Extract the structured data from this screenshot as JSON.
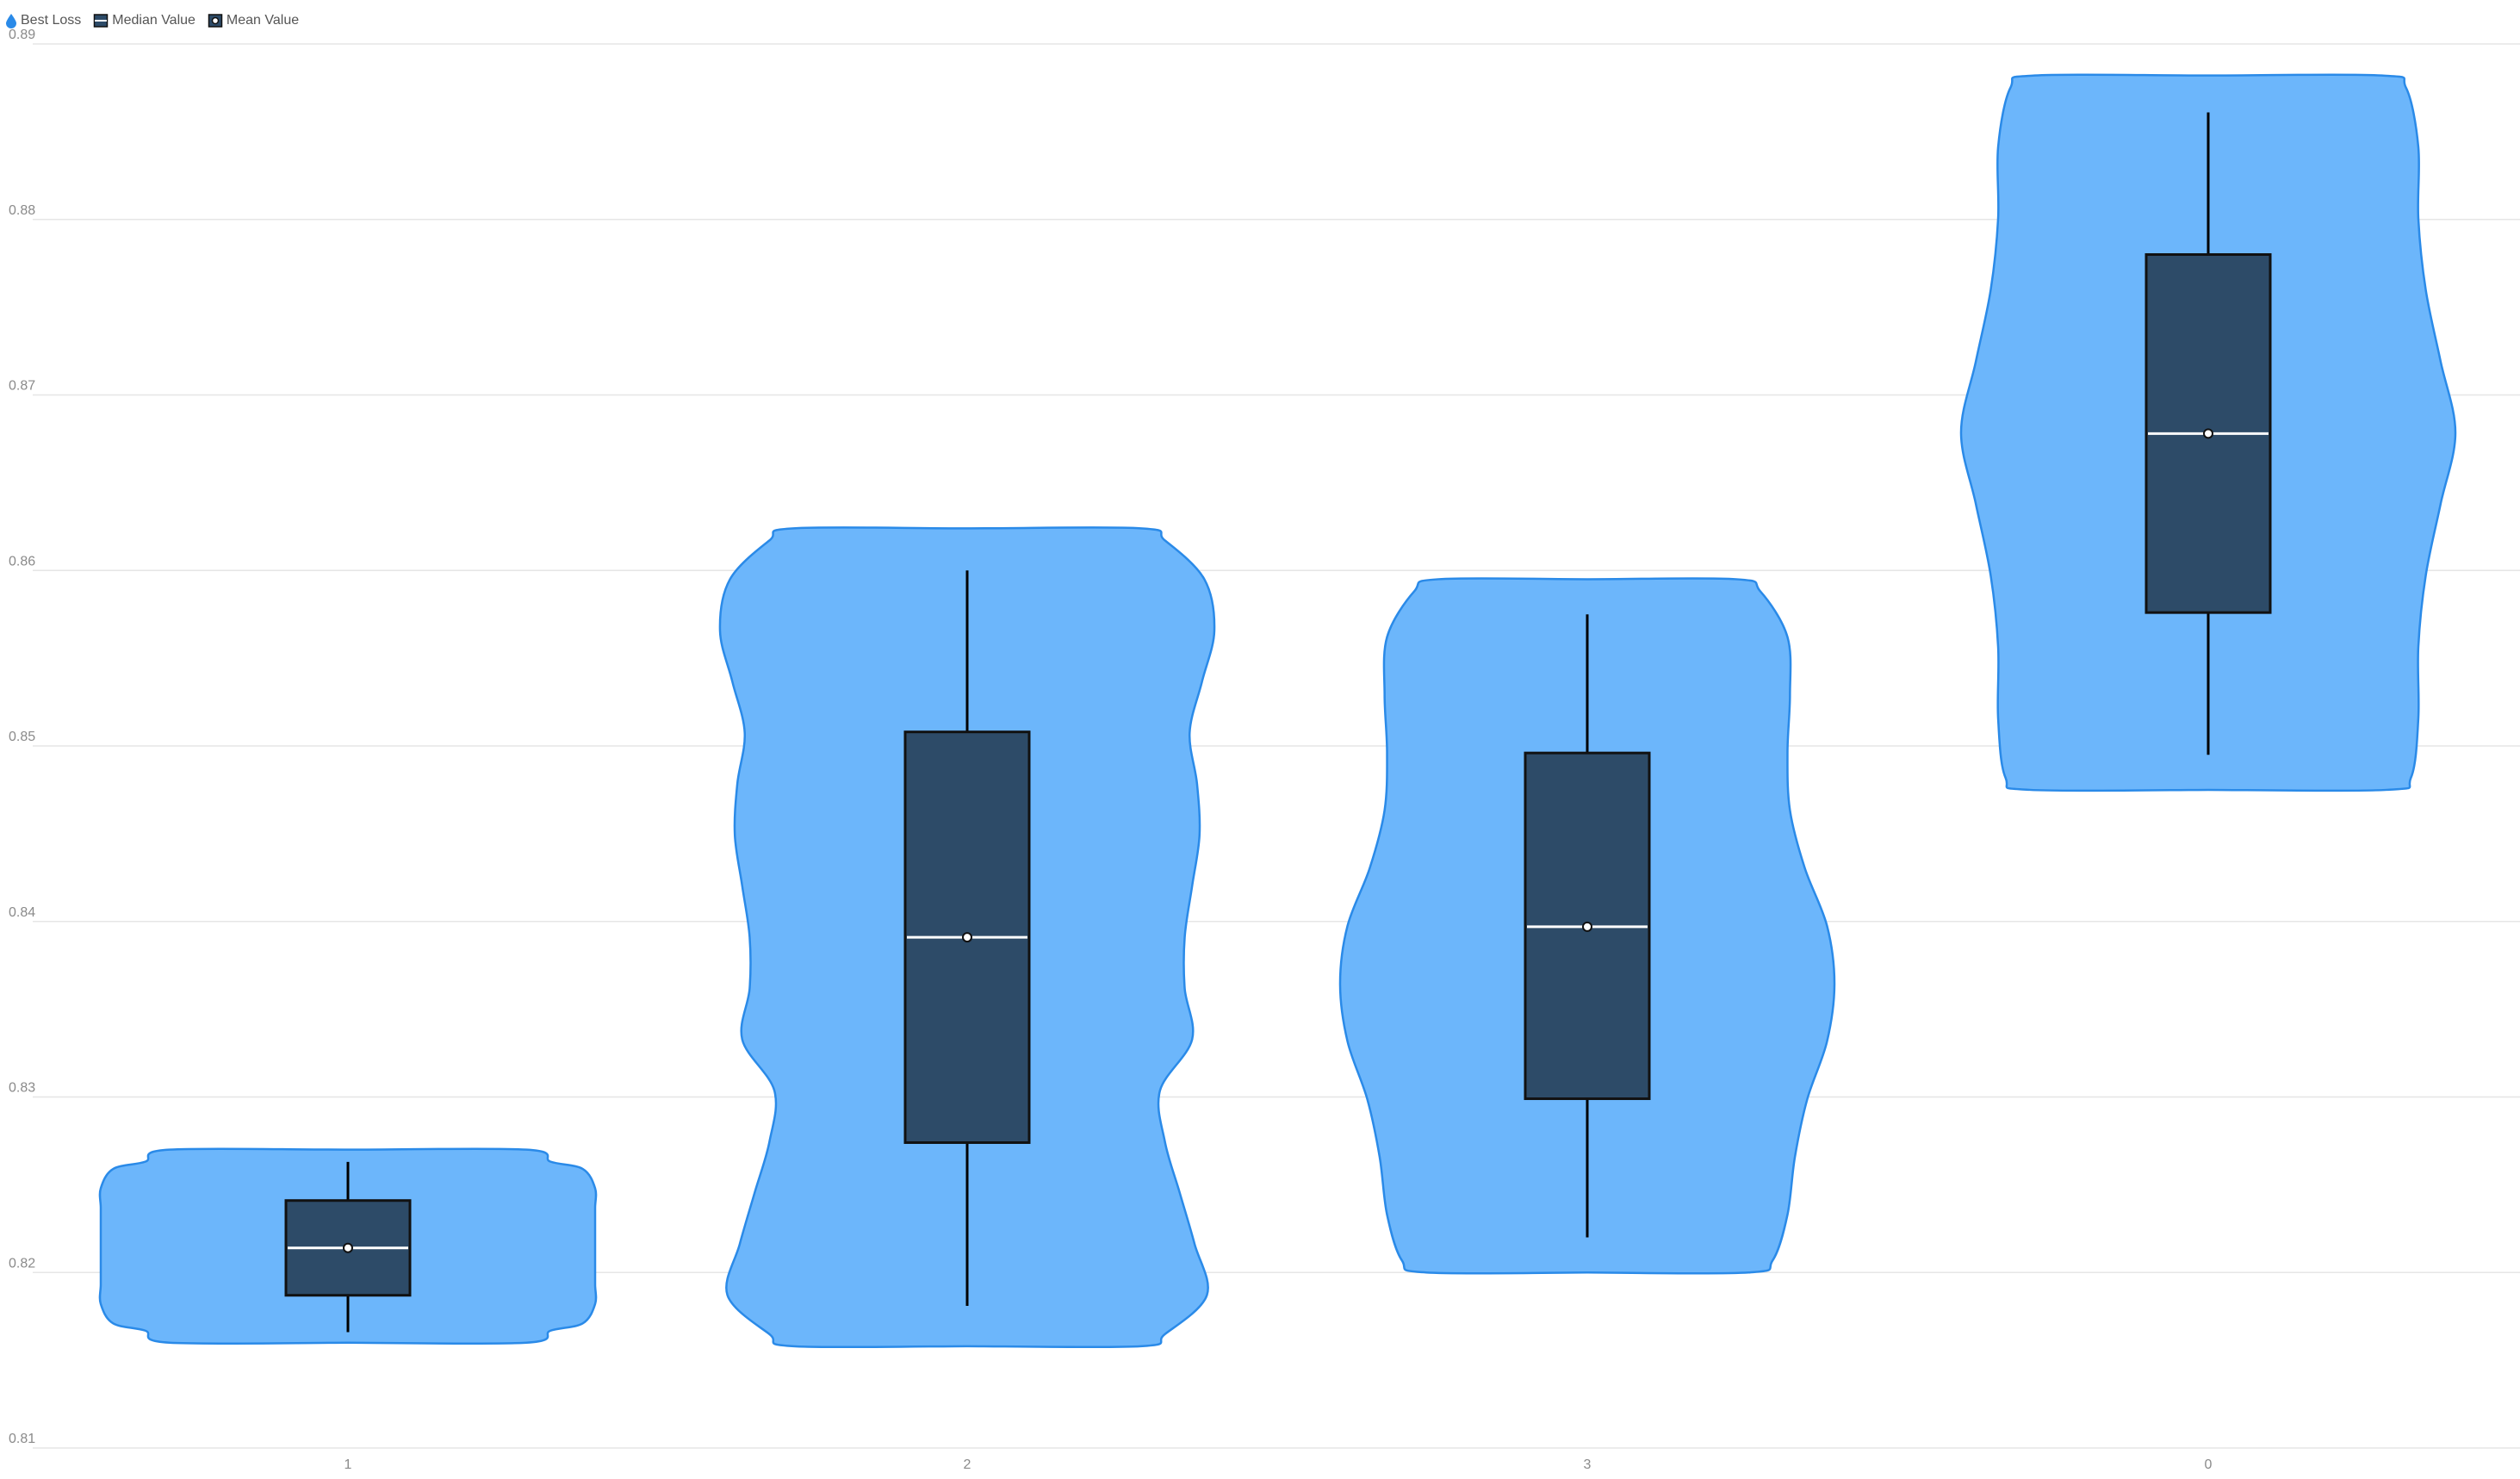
{
  "legend": {
    "items": [
      {
        "label": "Best Loss",
        "icon": "droplet-icon"
      },
      {
        "label": "Median Value",
        "icon": "median-box-icon"
      },
      {
        "label": "Mean Value",
        "icon": "mean-circle-icon"
      }
    ]
  },
  "colors": {
    "violin_fill": "#6cb6fb",
    "violin_stroke": "#2a8ae8",
    "box_fill": "#2d4b68",
    "box_stroke": "#111111",
    "median": "#ffffff",
    "grid": "#e6e6e6",
    "text": "#8a8a8a"
  },
  "chart_data": {
    "type": "violin",
    "title": "",
    "xlabel": "",
    "ylabel": "",
    "ylim": [
      0.81,
      0.89
    ],
    "yticks": [
      "0.81",
      "0.82",
      "0.83",
      "0.84",
      "0.85",
      "0.86",
      "0.87",
      "0.88",
      "0.89"
    ],
    "grid": true,
    "legend_position": "top-left",
    "series_name": "Best Loss",
    "categories": [
      "1",
      "2",
      "3",
      "0"
    ],
    "groups": [
      {
        "category": "1",
        "min": 0.8166,
        "q1": 0.8187,
        "median": 0.8214,
        "q3": 0.8241,
        "max": 0.8263,
        "mean": 0.8214,
        "violin_range": [
          0.816,
          0.827
        ],
        "density_profile": [
          0.82,
          0.95,
          1.0,
          1.0,
          1.0,
          1.0,
          1.0,
          1.0,
          1.0,
          0.95,
          0.82
        ]
      },
      {
        "category": "2",
        "min": 0.8181,
        "q1": 0.8274,
        "median": 0.8391,
        "q3": 0.8508,
        "max": 0.86,
        "mean": 0.8391,
        "violin_range": [
          0.8158,
          0.8624
        ],
        "density_profile": [
          0.8,
          0.97,
          0.92,
          0.86,
          0.8,
          0.78,
          0.91,
          0.88,
          0.88,
          0.91,
          0.94,
          0.93,
          0.9,
          0.95,
          1.0,
          0.96,
          0.8
        ]
      },
      {
        "category": "3",
        "min": 0.822,
        "q1": 0.8299,
        "median": 0.8397,
        "q3": 0.8496,
        "max": 0.8575,
        "mean": 0.8397,
        "violin_range": [
          0.82,
          0.8595
        ],
        "density_profile": [
          0.75,
          0.81,
          0.84,
          0.89,
          0.97,
          1.0,
          0.97,
          0.88,
          0.82,
          0.81,
          0.82,
          0.81,
          0.7
        ]
      },
      {
        "category": "0",
        "min": 0.8495,
        "q1": 0.8576,
        "median": 0.8678,
        "q3": 0.878,
        "max": 0.8861,
        "mean": 0.8678,
        "violin_range": [
          0.8475,
          0.8882
        ],
        "density_profile": [
          0.82,
          0.85,
          0.85,
          0.88,
          0.94,
          1.0,
          0.94,
          0.88,
          0.85,
          0.85,
          0.8
        ]
      }
    ]
  }
}
